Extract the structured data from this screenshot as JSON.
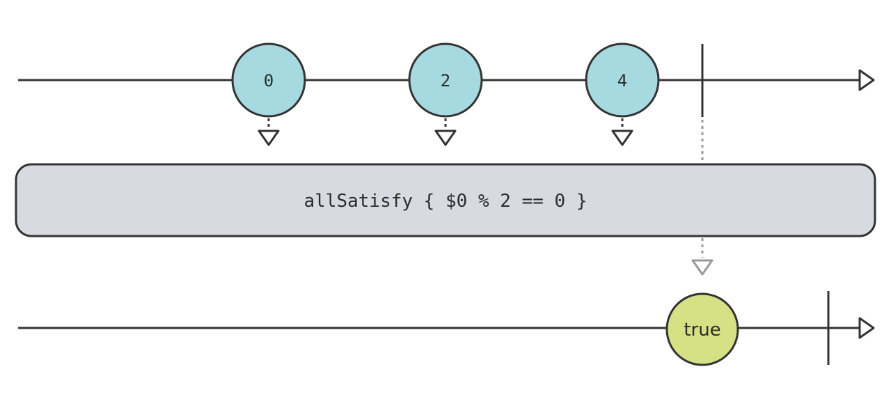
{
  "operator": {
    "label": "allSatisfy { $0 % 2 == 0 }"
  },
  "input_stream": {
    "events": [
      "0",
      "2",
      "4"
    ],
    "completed": true
  },
  "output_stream": {
    "events": [
      "true"
    ],
    "completed": true
  },
  "colors": {
    "input_marble": "#a6d9e0",
    "output_marble": "#d6e186",
    "operator_box": "#d7dae1",
    "line": "#333333",
    "result_arrow": "#999999"
  }
}
